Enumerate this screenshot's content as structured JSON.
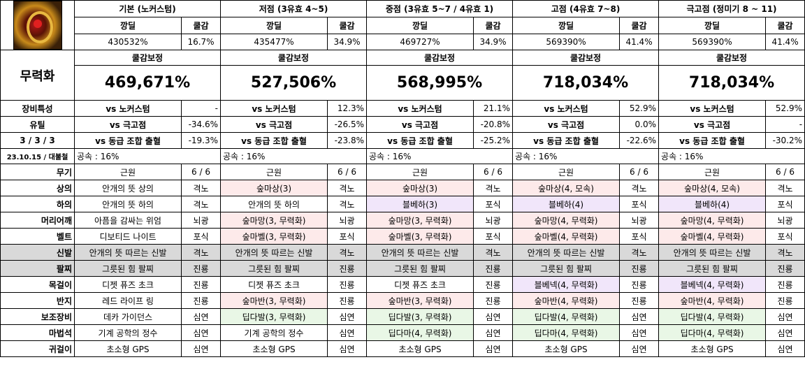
{
  "header": {
    "cols": [
      {
        "title": "기본 (노커스텀)",
        "ddam": "깡딜",
        "cool": "쿨감",
        "ddam_val": "430532%",
        "cool_val": "16.7%",
        "boosted": "469,671%"
      },
      {
        "title": "저점 (3유효 4~5)",
        "ddam": "깡딜",
        "cool": "쿨감",
        "ddam_val": "435477%",
        "cool_val": "34.9%",
        "boosted": "527,506%"
      },
      {
        "title": "중점 (3유효 5~7 / 4유효 1)",
        "ddam": "깡딜",
        "cool": "쿨감",
        "ddam_val": "469727%",
        "cool_val": "34.9%",
        "boosted": "568,995%"
      },
      {
        "title": "고점 (4유효 7~8)",
        "ddam": "깡딜",
        "cool": "쿨감",
        "ddam_val": "569390%",
        "cool_val": "41.4%",
        "boosted": "718,034%"
      },
      {
        "title": "극고점 (정미기 8 ~ 11)",
        "ddam": "깡딜",
        "cool": "쿨감",
        "ddam_val": "569390%",
        "cool_val": "41.4%",
        "boosted": "718,034%"
      }
    ],
    "boost_label": "쿨감보정"
  },
  "side": {
    "skill": "무력화",
    "trait": "장비특성",
    "util": "유틸",
    "ratio": "3 / 3 / 3",
    "date": "23.10.15 / 대불철"
  },
  "compare": {
    "labels": [
      "vs 노커스텀",
      "vs 극고점",
      "vs 동급 조합 출혈"
    ],
    "values": [
      [
        "-",
        "-34.6%",
        "-19.3%"
      ],
      [
        "12.3%",
        "-26.5%",
        "-23.8%"
      ],
      [
        "21.1%",
        "-20.8%",
        "-25.2%"
      ],
      [
        "52.9%",
        "0.0%",
        "-22.6%"
      ],
      [
        "52.9%",
        "-",
        "-30.2%"
      ]
    ]
  },
  "speed": "공속 : 16%",
  "equip_labels": [
    "무기",
    "상의",
    "하의",
    "머리어깨",
    "벨트",
    "신발",
    "팔찌",
    "목걸이",
    "반지",
    "보조장비",
    "마법석",
    "귀걸이"
  ],
  "equip": [
    [
      [
        "근원",
        "6 / 6"
      ],
      [
        "안개의 뜻 상의",
        "격노"
      ],
      [
        "안개의 뜻 하의",
        "격노"
      ],
      [
        "아픔을 감싸는 위엄",
        "뇌광"
      ],
      [
        "디보티드 나이트",
        "포식"
      ],
      [
        "안개의 뜻 따르는 신발",
        "격노"
      ],
      [
        "그릇된 힘 팔찌",
        "진룡"
      ],
      [
        "디젯 퓨즈 초크",
        "진룡"
      ],
      [
        "레드 라이프 링",
        "진룡"
      ],
      [
        "데카 가이던스",
        "심연"
      ],
      [
        "기계 공학의 정수",
        "심연"
      ],
      [
        "초소형 GPS",
        "심연"
      ]
    ],
    [
      [
        "근원",
        "6 / 6"
      ],
      [
        "숲마상(3)",
        "격노"
      ],
      [
        "안개의 뜻 하의",
        "격노"
      ],
      [
        "숲마망(3, 무력화)",
        "뇌광"
      ],
      [
        "숲마벨(3, 무력화)",
        "포식"
      ],
      [
        "안개의 뜻 따르는 신발",
        "격노"
      ],
      [
        "그릇된 힘 팔찌",
        "진룡"
      ],
      [
        "디젯 퓨즈 초크",
        "진룡"
      ],
      [
        "숲마반(3, 무력화)",
        "진룡"
      ],
      [
        "딥다발(3, 무력화)",
        "심연"
      ],
      [
        "기계 공학의 정수",
        "심연"
      ],
      [
        "초소형 GPS",
        "심연"
      ]
    ],
    [
      [
        "근원",
        "6 / 6"
      ],
      [
        "숲마상(3)",
        "격노"
      ],
      [
        "블베하(3)",
        "포식"
      ],
      [
        "숲마망(3, 무력화)",
        "뇌광"
      ],
      [
        "숲마벨(3, 무력화)",
        "포식"
      ],
      [
        "안개의 뜻 따르는 신발",
        "격노"
      ],
      [
        "그릇된 힘 팔찌",
        "진룡"
      ],
      [
        "디젯 퓨즈 초크",
        "진룡"
      ],
      [
        "숲마반(3, 무력화)",
        "진룡"
      ],
      [
        "딥다발(3, 무력화)",
        "심연"
      ],
      [
        "딥다마(4, 무력화)",
        "심연"
      ],
      [
        "초소형 GPS",
        "심연"
      ]
    ],
    [
      [
        "근원",
        "6 / 6"
      ],
      [
        "숲마상(4, 모속)",
        "격노"
      ],
      [
        "블베하(4)",
        "포식"
      ],
      [
        "숲마망(4, 무력화)",
        "뇌광"
      ],
      [
        "숲마벨(4, 무력화)",
        "포식"
      ],
      [
        "안개의 뜻 따르는 신발",
        "격노"
      ],
      [
        "그릇된 힘 팔찌",
        "진룡"
      ],
      [
        "블베넥(4, 무력화)",
        "진룡"
      ],
      [
        "숲마반(4, 무력화)",
        "진룡"
      ],
      [
        "딥다발(4, 무력화)",
        "심연"
      ],
      [
        "딥다마(4, 무력화)",
        "심연"
      ],
      [
        "초소형 GPS",
        "심연"
      ]
    ],
    [
      [
        "근원",
        "6 / 6"
      ],
      [
        "숲마상(4, 모속)",
        "격노"
      ],
      [
        "블베하(4)",
        "포식"
      ],
      [
        "숲마망(4, 무력화)",
        "뇌광"
      ],
      [
        "숲마벨(4, 무력화)",
        "포식"
      ],
      [
        "안개의 뜻 따르는 신발",
        "격노"
      ],
      [
        "그릇된 힘 팔찌",
        "진룡"
      ],
      [
        "블베넥(4, 무력화)",
        "진룡"
      ],
      [
        "숲마반(4, 무력화)",
        "진룡"
      ],
      [
        "딥다발(4, 무력화)",
        "심연"
      ],
      [
        "딥다마(4, 무력화)",
        "심연"
      ],
      [
        "초소형 GPS",
        "심연"
      ]
    ]
  ],
  "colors": {
    "pink": "#fdeaea",
    "purple": "#f1e6fa",
    "green": "#e9f7e6",
    "gray": "#d9d9d9"
  },
  "tint": [
    [
      "",
      "",
      "",
      "",
      "",
      "",
      "",
      "",
      "",
      "",
      "",
      ""
    ],
    [
      "",
      "pink",
      "",
      "pink",
      "pink",
      "",
      "",
      "",
      "pink",
      "green",
      "",
      ""
    ],
    [
      "",
      "pink",
      "purple",
      "pink",
      "pink",
      "",
      "",
      "",
      "pink",
      "green",
      "green",
      ""
    ],
    [
      "",
      "pink",
      "purple",
      "pink",
      "pink",
      "",
      "",
      "purple",
      "pink",
      "green",
      "green",
      ""
    ],
    [
      "",
      "pink",
      "purple",
      "pink",
      "pink",
      "",
      "",
      "purple",
      "pink",
      "green",
      "green",
      ""
    ]
  ]
}
